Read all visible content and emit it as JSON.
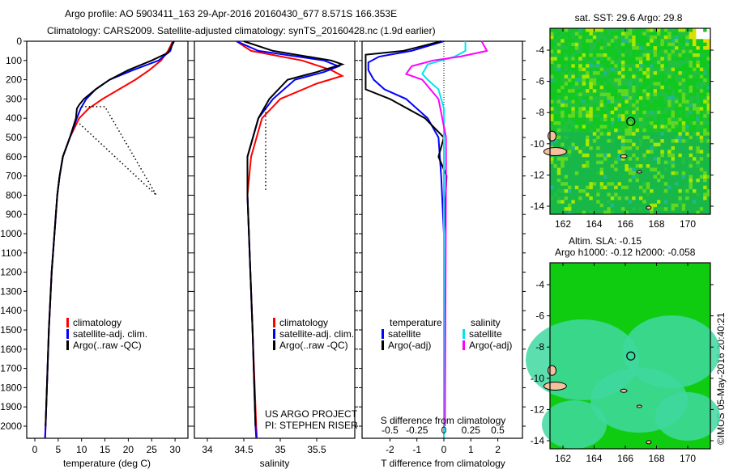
{
  "title_line1": "Argo profile: AO 5903411_163 29-Apr-2016 20160430_677 8.571S 166.353E",
  "title_line2": "Climatology: CARS2009. Satellite-adjusted climatology: synTS_20160428.nc (1.9d earlier)",
  "credit": "©IMOS 05-May-2016 20:40:21",
  "project_line1": "US ARGO PROJECT",
  "project_line2": "PI: STEPHEN RISER",
  "colors": {
    "climatology": "#ff0000",
    "satellite": "#0000ff",
    "argo": "#000000",
    "sal_satellite": "#00e5ee",
    "sal_argo": "#ff00ff"
  },
  "chart_data": [
    {
      "type": "line",
      "name": "temperature",
      "xlabel": "temperature (deg C)",
      "xlim": [
        -2,
        32
      ],
      "ylim": [
        0,
        2060
      ],
      "xticks": [
        "0",
        "5",
        "10",
        "15",
        "20",
        "25",
        "30"
      ],
      "yticks": [
        "0",
        "100",
        "200",
        "300",
        "400",
        "500",
        "600",
        "700",
        "800",
        "900",
        "1000",
        "1100",
        "1200",
        "1300",
        "1400",
        "1500",
        "1600",
        "1700",
        "1800",
        "1900",
        "2000"
      ],
      "legend": [
        "climatology",
        "satellite-adj. clim.",
        "Argo(..raw -QC)"
      ],
      "series": [
        {
          "name": "climatology",
          "color": "#ff0000",
          "points": [
            [
              29.5,
              0
            ],
            [
              28.5,
              50
            ],
            [
              27,
              100
            ],
            [
              24.5,
              150
            ],
            [
              21.5,
              200
            ],
            [
              18,
              250
            ],
            [
              14.5,
              300
            ],
            [
              11.5,
              350
            ],
            [
              9.5,
              400
            ],
            [
              7.5,
              500
            ],
            [
              6,
              600
            ],
            [
              5.3,
              700
            ],
            [
              4.8,
              800
            ],
            [
              4.2,
              1000
            ],
            [
              3.6,
              1200
            ],
            [
              3,
              1500
            ],
            [
              2.3,
              2000
            ],
            [
              2.2,
              2060
            ]
          ]
        },
        {
          "name": "satellite-adj. clim.",
          "color": "#0000ff",
          "points": [
            [
              29.6,
              0
            ],
            [
              29,
              50
            ],
            [
              26.5,
              100
            ],
            [
              21,
              150
            ],
            [
              16,
              200
            ],
            [
              13,
              250
            ],
            [
              11,
              300
            ],
            [
              9.8,
              350
            ],
            [
              9,
              400
            ],
            [
              7.5,
              500
            ],
            [
              6,
              600
            ],
            [
              5.3,
              700
            ],
            [
              4.8,
              800
            ],
            [
              4.2,
              1000
            ],
            [
              3.6,
              1200
            ],
            [
              3,
              1500
            ],
            [
              2.3,
              2000
            ],
            [
              2.2,
              2060
            ]
          ]
        },
        {
          "name": "Argo(..raw -QC)",
          "color": "#000000",
          "points": [
            [
              29.8,
              0
            ],
            [
              28.5,
              60
            ],
            [
              25,
              100
            ],
            [
              20,
              150
            ],
            [
              16,
              200
            ],
            [
              13,
              250
            ],
            [
              10.5,
              300
            ],
            [
              9.5,
              330
            ],
            [
              9,
              350
            ],
            [
              8.8,
              400
            ],
            [
              7.5,
              500
            ],
            [
              6,
              600
            ],
            [
              5.3,
              700
            ],
            [
              4.8,
              800
            ],
            [
              4.2,
              1000
            ],
            [
              3.6,
              1200
            ],
            [
              3,
              1500
            ],
            [
              2.3,
              2000
            ]
          ]
        },
        {
          "name": "Argo raw spikes",
          "color": "#000000",
          "dotted": true,
          "points": [
            [
              10,
              340
            ],
            [
              15,
              340
            ],
            [
              26,
              800
            ],
            [
              9.2,
              420
            ]
          ]
        }
      ]
    },
    {
      "type": "line",
      "name": "salinity",
      "xlabel": "salinity",
      "xlim": [
        33.75,
        36.2
      ],
      "ylim": [
        0,
        2060
      ],
      "xticks": [
        "34",
        "34.5",
        "35",
        "35.5"
      ],
      "legend": [
        "climatology",
        "satellite-adj. clim.",
        "Argo(..raw -QC)"
      ],
      "series": [
        {
          "name": "climatology",
          "color": "#ff0000",
          "points": [
            [
              34.4,
              0
            ],
            [
              34.6,
              50
            ],
            [
              35.3,
              100
            ],
            [
              35.7,
              150
            ],
            [
              35.85,
              180
            ],
            [
              35.5,
              220
            ],
            [
              35.0,
              300
            ],
            [
              34.75,
              400
            ],
            [
              34.6,
              600
            ],
            [
              34.55,
              800
            ],
            [
              34.57,
              1000
            ],
            [
              34.62,
              1500
            ],
            [
              34.67,
              2000
            ],
            [
              34.68,
              2060
            ]
          ]
        },
        {
          "name": "satellite-adj. clim.",
          "color": "#0000ff",
          "points": [
            [
              34.4,
              0
            ],
            [
              34.7,
              50
            ],
            [
              35.6,
              100
            ],
            [
              35.8,
              130
            ],
            [
              35.6,
              160
            ],
            [
              35.2,
              200
            ],
            [
              34.9,
              300
            ],
            [
              34.7,
              400
            ],
            [
              34.55,
              600
            ],
            [
              34.55,
              800
            ],
            [
              34.57,
              1000
            ],
            [
              34.62,
              1500
            ],
            [
              34.66,
              2000
            ],
            [
              34.67,
              2060
            ]
          ]
        },
        {
          "name": "Argo(..raw -QC)",
          "color": "#000000",
          "points": [
            [
              34.5,
              0
            ],
            [
              34.9,
              50
            ],
            [
              35.7,
              100
            ],
            [
              35.85,
              120
            ],
            [
              35.5,
              160
            ],
            [
              35.1,
              200
            ],
            [
              34.85,
              300
            ],
            [
              34.7,
              400
            ],
            [
              34.55,
              600
            ],
            [
              34.55,
              800
            ],
            [
              34.57,
              1000
            ],
            [
              34.62,
              1500
            ],
            [
              34.66,
              2000
            ]
          ]
        },
        {
          "name": "Argo raw spikes",
          "color": "#000000",
          "dotted": true,
          "points": [
            [
              34.8,
              350
            ],
            [
              34.8,
              780
            ]
          ]
        }
      ]
    },
    {
      "type": "line",
      "name": "difference",
      "xlabel": "T difference from climatology",
      "xlabel2": "S difference from climatology",
      "xlim": [
        -3,
        3
      ],
      "ylim": [
        0,
        2060
      ],
      "xticks": [
        "-2",
        "-1",
        "0",
        "1",
        "2"
      ],
      "xticks2": [
        "-0.5",
        "-0.25",
        "0",
        "0.25",
        "0.5"
      ],
      "legend_t_title": "temperature",
      "legend_s_title": "salinity",
      "legend": [
        "satellite",
        "Argo(-adj)",
        "satellite",
        "Argo(-adj)"
      ],
      "series": [
        {
          "name": "T satellite",
          "color": "#0000ff",
          "units": "T",
          "points": [
            [
              0,
              0
            ],
            [
              -1.2,
              50
            ],
            [
              -2.4,
              80
            ],
            [
              -2.8,
              110
            ],
            [
              -2.8,
              150
            ],
            [
              -2.6,
              200
            ],
            [
              -2.2,
              250
            ],
            [
              -1.4,
              300
            ],
            [
              -0.6,
              400
            ],
            [
              -0.2,
              500
            ],
            [
              -0.1,
              700
            ],
            [
              0,
              1000
            ],
            [
              0,
              2060
            ]
          ]
        },
        {
          "name": "T Argo(-adj)",
          "color": "#000000",
          "units": "T",
          "points": [
            [
              -0.1,
              0
            ],
            [
              -1.5,
              50
            ],
            [
              -2.9,
              70
            ],
            [
              -2.9,
              250
            ],
            [
              -2.0,
              300
            ],
            [
              -0.7,
              400
            ],
            [
              0,
              500
            ],
            [
              -0.2,
              600
            ],
            [
              0.1,
              700
            ],
            [
              0,
              1000
            ],
            [
              0,
              2000
            ]
          ]
        },
        {
          "name": "S satellite",
          "color": "#00e5ee",
          "units": "S",
          "points": [
            [
              0.2,
              0
            ],
            [
              0.2,
              50
            ],
            [
              0.1,
              80
            ],
            [
              -0.15,
              120
            ],
            [
              -0.2,
              170
            ],
            [
              -0.15,
              200
            ],
            [
              -0.05,
              250
            ],
            [
              0,
              350
            ],
            [
              0,
              2060
            ]
          ]
        },
        {
          "name": "S Argo(-adj)",
          "color": "#ff00ff",
          "units": "S",
          "points": [
            [
              0.35,
              0
            ],
            [
              0.4,
              50
            ],
            [
              0.15,
              80
            ],
            [
              -0.1,
              100
            ],
            [
              -0.3,
              130
            ],
            [
              -0.35,
              170
            ],
            [
              -0.2,
              200
            ],
            [
              -0.05,
              300
            ],
            [
              0.02,
              500
            ],
            [
              0.02,
              700
            ],
            [
              0.01,
              2000
            ]
          ]
        }
      ]
    },
    {
      "type": "heatmap",
      "name": "sst-map",
      "title": "sat. SST: 29.6 Argo: 29.8",
      "xticks": [
        "162",
        "164",
        "166",
        "168",
        "170"
      ],
      "yticks": [
        "-4",
        "-6",
        "-8",
        "-10",
        "-12",
        "-14"
      ],
      "xlim": [
        161.2,
        171.5
      ],
      "ylim": [
        -14.5,
        -2.8
      ],
      "marker": [
        166.353,
        -8.571
      ]
    },
    {
      "type": "heatmap",
      "name": "sla-map",
      "title": "Altim. SLA: -0.15",
      "subtitle": "Argo h1000: -0.12 h2000: -0.058",
      "xticks": [
        "162",
        "164",
        "166",
        "168",
        "170"
      ],
      "yticks": [
        "-4",
        "-6",
        "-8",
        "-10",
        "-12",
        "-14"
      ],
      "xlim": [
        161.2,
        171.5
      ],
      "ylim": [
        -14.5,
        -2.8
      ],
      "marker": [
        166.353,
        -8.571
      ]
    }
  ]
}
